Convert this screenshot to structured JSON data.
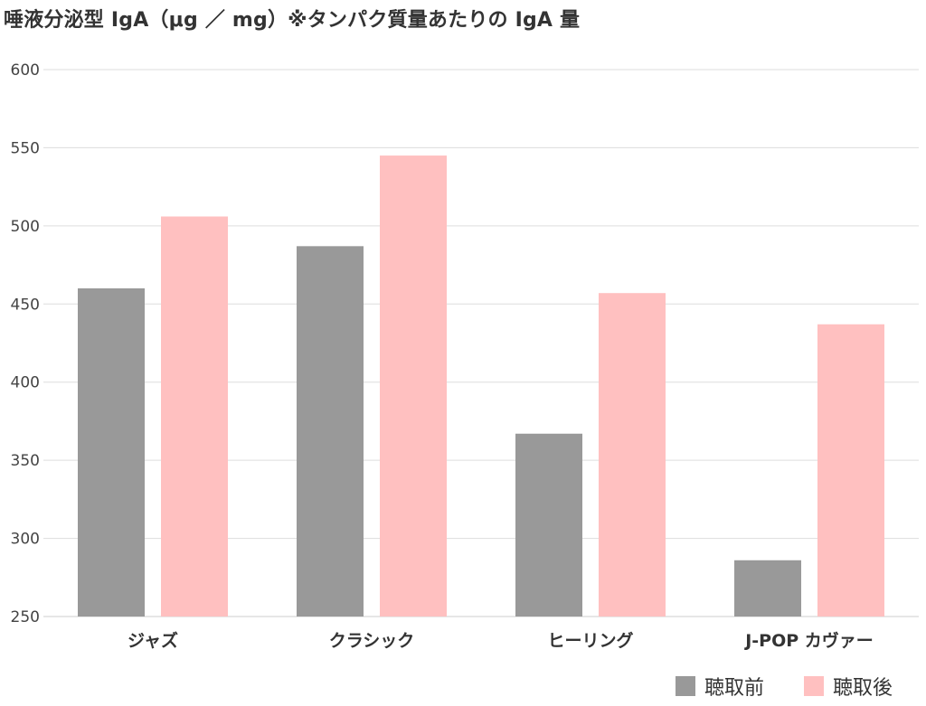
{
  "chart_data": {
    "type": "bar",
    "title": "唾液分泌型 IgA（μg ／ mg）※タンパク質量あたりの IgA 量",
    "categories": [
      "ジャズ",
      "クラシック",
      "ヒーリング",
      "J-POP カヴァー"
    ],
    "series": [
      {
        "name": "聴取前",
        "values": [
          460,
          487,
          367,
          286
        ],
        "color": "#999999"
      },
      {
        "name": "聴取後",
        "values": [
          506,
          545,
          457,
          437
        ],
        "color": "#ffc0c0"
      }
    ],
    "xlabel": "",
    "ylabel": "",
    "ylim": [
      250,
      600
    ],
    "yticks": [
      250,
      300,
      350,
      400,
      450,
      500,
      550,
      600
    ],
    "grid": true,
    "legend": "bottom-right"
  }
}
